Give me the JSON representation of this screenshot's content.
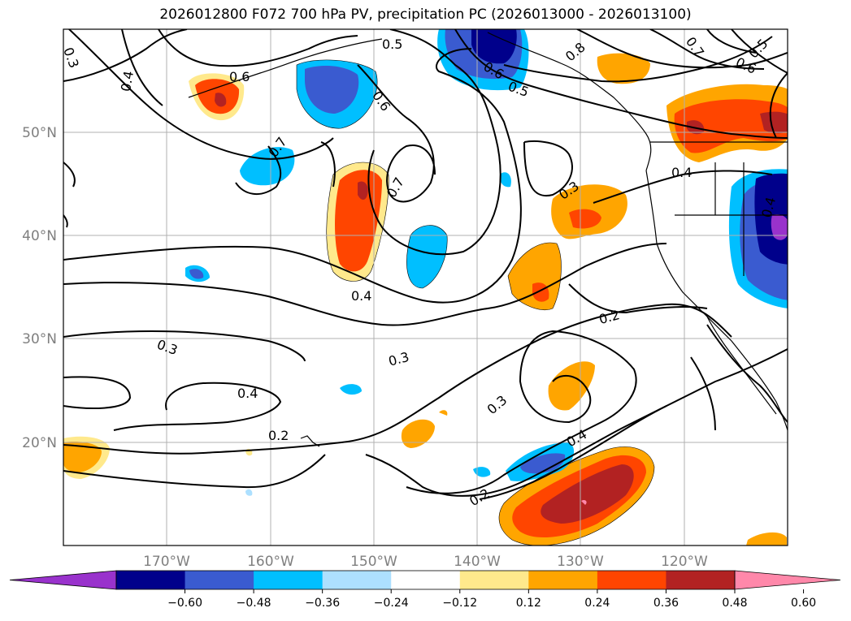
{
  "title": "2026012800 F072 700 hPa PV, precipitation PC (2026013000 - 2026013100)",
  "lat_labels": [
    "50°N",
    "40°N",
    "30°N",
    "20°N"
  ],
  "lon_labels": [
    "170°W",
    "160°W",
    "150°W",
    "140°W",
    "130°W",
    "120°W"
  ],
  "colorbar": {
    "ticks": [
      "−0.60",
      "−0.48",
      "−0.36",
      "−0.24",
      "−0.12",
      "0.12",
      "0.24",
      "0.36",
      "0.48",
      "0.60"
    ],
    "colors": [
      "#9932CC",
      "#00008B",
      "#3A5BD0",
      "#00BFFF",
      "#ADE0FF",
      "#FFFFFF",
      "#FFE98C",
      "#FFA500",
      "#FF4500",
      "#B22222",
      "#FF88AA"
    ]
  },
  "contour_labels": [
    {
      "text": "0.5"
    },
    {
      "text": "0.6"
    },
    {
      "text": "0.4"
    },
    {
      "text": "0.3"
    },
    {
      "text": "0.6"
    },
    {
      "text": "0.7"
    },
    {
      "text": "0.7"
    },
    {
      "text": "0.4"
    },
    {
      "text": "0.3"
    },
    {
      "text": "0.4"
    },
    {
      "text": "0.2"
    },
    {
      "text": "0.3"
    },
    {
      "text": "0.3"
    },
    {
      "text": "0.4"
    },
    {
      "text": "0.2"
    },
    {
      "text": "0.2"
    },
    {
      "text": "0.6"
    },
    {
      "text": "0.5"
    },
    {
      "text": "0.8"
    },
    {
      "text": "0.7"
    },
    {
      "text": "0.6"
    },
    {
      "text": "0.5"
    },
    {
      "text": "0.4"
    },
    {
      "text": "0.3"
    },
    {
      "text": "0.4"
    }
  ]
}
